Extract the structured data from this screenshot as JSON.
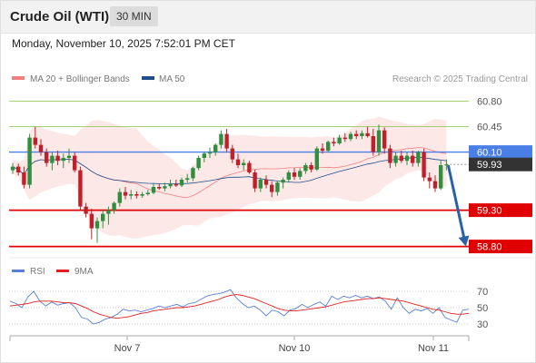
{
  "header": {
    "title": "Crude Oil (WTI)",
    "timeframe": "30 MIN"
  },
  "datetime": "Monday, November 10, 2025 7:52:01 PM CET",
  "legend": {
    "ma20": {
      "label": "MA 20 + Bollinger Bands",
      "color": "#f08080"
    },
    "ma50": {
      "label": "MA 50",
      "color": "#1f4e8c"
    },
    "credit": "Research © 2025 Trading Central"
  },
  "rsi_legend": {
    "rsi": {
      "label": "RSI",
      "color": "#5b7fd6"
    },
    "ma9": {
      "label": "9MA",
      "color": "#e02020"
    }
  },
  "colors": {
    "up": "#2f8f3f",
    "down": "#c0202a",
    "pivot": "#4a7fe8",
    "resistance": "#8bc34a",
    "support": "#e00000",
    "arrow": "#2a62a8",
    "current": "#333333"
  },
  "chart_data": [
    {
      "type": "candlestick",
      "ylim": [
        58.72,
        60.97
      ],
      "levels": [
        {
          "value": 60.8,
          "label": "60.80",
          "kind": "resistance"
        },
        {
          "value": 60.45,
          "label": "60.45",
          "kind": "resistance"
        },
        {
          "value": 60.1,
          "label": "60.10",
          "kind": "pivot"
        },
        {
          "value": 59.93,
          "label": "59.93",
          "kind": "current"
        },
        {
          "value": 59.3,
          "label": "59.30",
          "kind": "support"
        },
        {
          "value": 58.8,
          "label": "58.80",
          "kind": "support"
        }
      ],
      "x_tick_labels": [
        "Nov 7",
        "Nov 10",
        "Nov 11"
      ],
      "forecast_arrow": {
        "from": 59.93,
        "to": 58.8
      },
      "candles": [
        [
          59.85,
          59.95,
          59.8,
          59.9
        ],
        [
          59.9,
          59.94,
          59.78,
          59.82
        ],
        [
          59.82,
          59.9,
          59.6,
          59.65
        ],
        [
          59.65,
          60.35,
          59.6,
          60.3
        ],
        [
          60.3,
          60.45,
          60.15,
          60.2
        ],
        [
          60.2,
          60.28,
          60.05,
          60.1
        ],
        [
          60.1,
          60.15,
          59.9,
          59.95
        ],
        [
          59.95,
          60.1,
          59.85,
          60.05
        ],
        [
          60.05,
          60.12,
          59.92,
          59.98
        ],
        [
          59.98,
          60.08,
          59.88,
          60.02
        ],
        [
          60.02,
          60.15,
          59.95,
          60.05
        ],
        [
          60.05,
          60.1,
          59.82,
          59.85
        ],
        [
          59.85,
          59.9,
          59.3,
          59.35
        ],
        [
          59.35,
          59.4,
          59.2,
          59.25
        ],
        [
          59.25,
          59.32,
          58.9,
          59.05
        ],
        [
          59.05,
          59.2,
          58.85,
          59.15
        ],
        [
          59.15,
          59.3,
          59.05,
          59.25
        ],
        [
          59.25,
          59.35,
          59.1,
          59.3
        ],
        [
          59.3,
          59.42,
          59.25,
          59.4
        ],
        [
          59.4,
          59.6,
          59.35,
          59.55
        ],
        [
          59.55,
          59.62,
          59.45,
          59.5
        ],
        [
          59.5,
          59.58,
          59.45,
          59.52
        ],
        [
          59.52,
          59.56,
          59.46,
          59.5
        ],
        [
          59.5,
          59.55,
          59.47,
          59.52
        ],
        [
          59.52,
          59.58,
          59.5,
          59.54
        ],
        [
          59.54,
          59.66,
          59.52,
          59.62
        ],
        [
          59.62,
          59.66,
          59.58,
          59.6
        ],
        [
          59.6,
          59.68,
          59.56,
          59.63
        ],
        [
          59.63,
          59.72,
          59.6,
          59.66
        ],
        [
          59.66,
          59.72,
          59.62,
          59.64
        ],
        [
          59.64,
          59.75,
          59.62,
          59.72
        ],
        [
          59.72,
          59.8,
          59.68,
          59.74
        ],
        [
          59.74,
          59.9,
          59.7,
          59.88
        ],
        [
          59.88,
          60.05,
          59.85,
          60.02
        ],
        [
          60.02,
          60.1,
          59.96,
          60.08
        ],
        [
          60.08,
          60.16,
          60.02,
          60.1
        ],
        [
          60.1,
          60.22,
          60.05,
          60.2
        ],
        [
          60.2,
          60.4,
          60.15,
          60.35
        ],
        [
          60.35,
          60.42,
          60.1,
          60.15
        ],
        [
          60.15,
          60.2,
          59.95,
          60.0
        ],
        [
          60.0,
          60.08,
          59.88,
          59.92
        ],
        [
          59.92,
          60.0,
          59.85,
          59.95
        ],
        [
          59.95,
          59.98,
          59.8,
          59.82
        ],
        [
          59.82,
          59.86,
          59.55,
          59.6
        ],
        [
          59.6,
          59.75,
          59.55,
          59.72
        ],
        [
          59.72,
          59.78,
          59.6,
          59.65
        ],
        [
          59.65,
          59.7,
          59.48,
          59.55
        ],
        [
          59.55,
          59.7,
          59.5,
          59.68
        ],
        [
          59.68,
          59.75,
          59.6,
          59.72
        ],
        [
          59.72,
          59.85,
          59.68,
          59.82
        ],
        [
          59.82,
          59.88,
          59.72,
          59.76
        ],
        [
          59.76,
          59.88,
          59.72,
          59.84
        ],
        [
          59.84,
          59.95,
          59.8,
          59.92
        ],
        [
          59.92,
          59.96,
          59.82,
          59.86
        ],
        [
          59.86,
          60.18,
          59.84,
          60.15
        ],
        [
          60.15,
          60.22,
          60.08,
          60.12
        ],
        [
          60.12,
          60.26,
          60.1,
          60.24
        ],
        [
          60.24,
          60.3,
          60.18,
          60.22
        ],
        [
          60.22,
          60.34,
          60.2,
          60.3
        ],
        [
          60.3,
          60.36,
          60.24,
          60.28
        ],
        [
          60.28,
          60.38,
          60.25,
          60.35
        ],
        [
          60.35,
          60.4,
          60.28,
          60.32
        ],
        [
          60.32,
          60.4,
          60.28,
          60.36
        ],
        [
          60.36,
          60.45,
          60.3,
          60.32
        ],
        [
          60.32,
          60.42,
          60.05,
          60.1
        ],
        [
          60.1,
          60.48,
          60.05,
          60.4
        ],
        [
          60.4,
          60.44,
          60.08,
          60.15
        ],
        [
          60.15,
          60.2,
          59.88,
          59.95
        ],
        [
          59.95,
          60.1,
          59.9,
          60.05
        ],
        [
          60.05,
          60.12,
          59.95,
          59.98
        ],
        [
          59.98,
          60.1,
          59.92,
          60.05
        ],
        [
          60.05,
          60.12,
          59.9,
          59.95
        ],
        [
          59.95,
          60.12,
          59.9,
          60.1
        ],
        [
          60.1,
          60.15,
          59.7,
          59.75
        ],
        [
          59.75,
          59.82,
          59.6,
          59.7
        ],
        [
          59.7,
          59.78,
          59.55,
          59.6
        ],
        [
          59.6,
          59.98,
          59.58,
          59.92
        ],
        [
          59.92,
          60.0,
          59.85,
          59.93
        ]
      ]
    },
    {
      "type": "line",
      "title": "RSI",
      "ylim": [
        20,
        80
      ],
      "y_tick_labels": [
        "70",
        "50",
        "30"
      ],
      "y_ticks": [
        70,
        50,
        30
      ],
      "series": [
        {
          "name": "RSI",
          "values": [
            58,
            55,
            50,
            63,
            70,
            58,
            52,
            57,
            53,
            55,
            56,
            50,
            38,
            36,
            30,
            32,
            36,
            38,
            42,
            48,
            46,
            47,
            45,
            47,
            49,
            52,
            50,
            52,
            54,
            51,
            55,
            56,
            60,
            64,
            66,
            67,
            69,
            72,
            62,
            55,
            50,
            52,
            47,
            40,
            47,
            45,
            40,
            47,
            49,
            54,
            50,
            54,
            57,
            52,
            64,
            60,
            64,
            62,
            65,
            62,
            64,
            61,
            63,
            58,
            48,
            62,
            50,
            43,
            48,
            46,
            49,
            43,
            50,
            38,
            35,
            32,
            47,
            48
          ]
        },
        {
          "name": "9MA",
          "values": [
            52,
            53,
            54,
            55,
            57,
            58,
            58,
            58,
            57,
            56,
            56,
            55,
            52,
            49,
            45,
            42,
            40,
            38,
            37,
            38,
            39,
            41,
            43,
            44,
            46,
            47,
            48,
            49,
            50,
            50,
            51,
            52,
            54,
            56,
            58,
            60,
            63,
            65,
            66,
            65,
            63,
            61,
            58,
            55,
            52,
            49,
            47,
            46,
            46,
            47,
            48,
            49,
            50,
            51,
            53,
            55,
            57,
            58,
            59,
            60,
            61,
            61,
            62,
            61,
            60,
            59,
            58,
            56,
            54,
            52,
            50,
            48,
            47,
            45,
            43,
            42,
            42,
            43
          ]
        }
      ]
    }
  ]
}
